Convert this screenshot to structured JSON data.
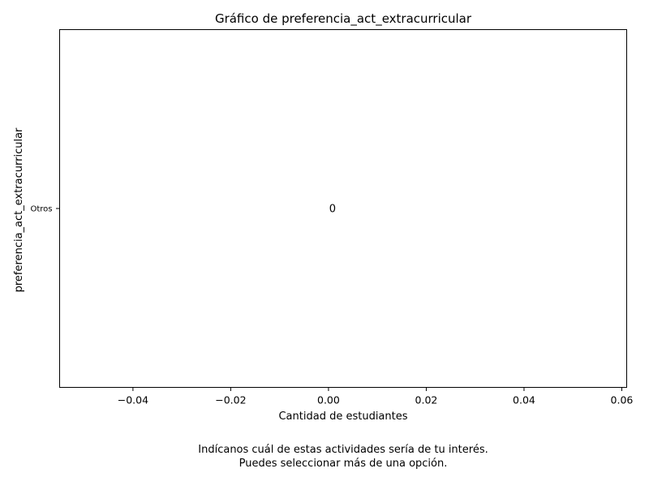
{
  "chart_data": {
    "type": "bar",
    "orientation": "horizontal",
    "title": "Gráfico de preferencia_act_extracurricular",
    "xlabel": "Cantidad de estudiantes",
    "ylabel": "preferencia_act_extracurricular",
    "categories": [
      "Otros"
    ],
    "values": [
      0
    ],
    "data_labels": [
      "0"
    ],
    "xlim": [
      -0.055,
      0.061
    ],
    "xticks": [
      -0.04,
      -0.02,
      0.0,
      0.02,
      0.04,
      0.06
    ],
    "xtick_labels": [
      "−0.04",
      "−0.02",
      "0.00",
      "0.02",
      "0.04",
      "0.06"
    ],
    "grid": false,
    "legend": "none",
    "bar_color": "#1f77b4"
  },
  "caption": {
    "line1": "Indícanos cuál de estas actividades sería de tu interés.",
    "line2": "Puedes seleccionar más de una opción."
  }
}
